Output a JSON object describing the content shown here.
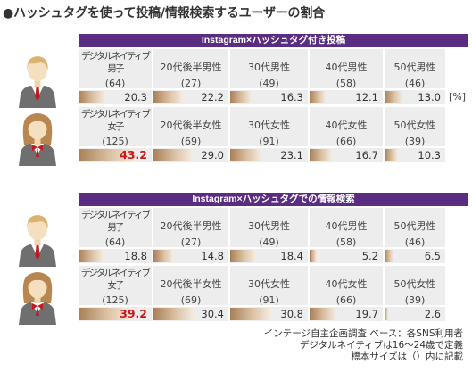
{
  "title": "●ハッシュタグを使って投稿/情報検索するユーザーの割合",
  "colors": {
    "banner": "#5b2d82",
    "cell_bg": "#ededed",
    "bar_dark": "#a97f57",
    "bar_mid": "#dcc2a4",
    "bar_light": "#f5ede3",
    "highlight_text": "#c8161d"
  },
  "chart_data": [
    {
      "type": "bar",
      "title": "Instagram×ハッシュタグ付き投稿",
      "unit_label": "[%]",
      "groups": [
        {
          "icon": "male-person-icon",
          "categories": [
            [
              "デジタルネイティブ",
              "男子"
            ],
            [
              "20代後半男性"
            ],
            [
              "30代男性"
            ],
            [
              "40代男性"
            ],
            [
              "50代男性"
            ]
          ],
          "sample_sizes": [
            "(64)",
            "(27)",
            "(49)",
            "(58)",
            "(46)"
          ],
          "values": [
            20.3,
            22.2,
            16.3,
            12.1,
            13.0
          ],
          "value_labels": [
            "20.3",
            "22.2",
            "16.3",
            "12.1",
            "13.0"
          ],
          "highlight": [
            false,
            false,
            false,
            false,
            false
          ]
        },
        {
          "icon": "female-person-icon",
          "categories": [
            [
              "デジタルネイティブ",
              "女子"
            ],
            [
              "20代後半女性"
            ],
            [
              "30代女性"
            ],
            [
              "40代女性"
            ],
            [
              "50代女性"
            ]
          ],
          "sample_sizes": [
            "(125)",
            "(69)",
            "(91)",
            "(66)",
            "(39)"
          ],
          "values": [
            43.2,
            29.0,
            23.1,
            16.7,
            10.3
          ],
          "value_labels": [
            "43.2",
            "29.0",
            "23.1",
            "16.7",
            "10.3"
          ],
          "highlight": [
            true,
            false,
            false,
            false,
            false
          ]
        }
      ]
    },
    {
      "type": "bar",
      "title": "Instagram×ハッシュタグでの情報検索",
      "groups": [
        {
          "icon": "male-person-icon",
          "categories": [
            [
              "デジタルネイティブ",
              "男子"
            ],
            [
              "20代後半男性"
            ],
            [
              "30代男性"
            ],
            [
              "40代男性"
            ],
            [
              "50代男性"
            ]
          ],
          "sample_sizes": [
            "(64)",
            "(27)",
            "(49)",
            "(58)",
            "(46)"
          ],
          "values": [
            18.8,
            14.8,
            18.4,
            5.2,
            6.5
          ],
          "value_labels": [
            "18.8",
            "14.8",
            "18.4",
            "5.2",
            "6.5"
          ],
          "highlight": [
            false,
            false,
            false,
            false,
            false
          ]
        },
        {
          "icon": "female-person-icon",
          "categories": [
            [
              "デジタルネイティブ",
              "女子"
            ],
            [
              "20代後半女性"
            ],
            [
              "30代女性"
            ],
            [
              "40代女性"
            ],
            [
              "50代女性"
            ]
          ],
          "sample_sizes": [
            "(125)",
            "(69)",
            "(91)",
            "(66)",
            "(39)"
          ],
          "values": [
            39.2,
            30.4,
            30.8,
            19.7,
            2.6
          ],
          "value_labels": [
            "39.2",
            "30.4",
            "30.8",
            "19.7",
            "2.6"
          ],
          "highlight": [
            true,
            false,
            false,
            false,
            false
          ]
        }
      ]
    }
  ],
  "footnotes": [
    "インテージ自主企画調査 ベース：各SNS利用者",
    "デジタルネイティブは16～24歳で定義",
    "標本サイズは（）内に記載"
  ]
}
